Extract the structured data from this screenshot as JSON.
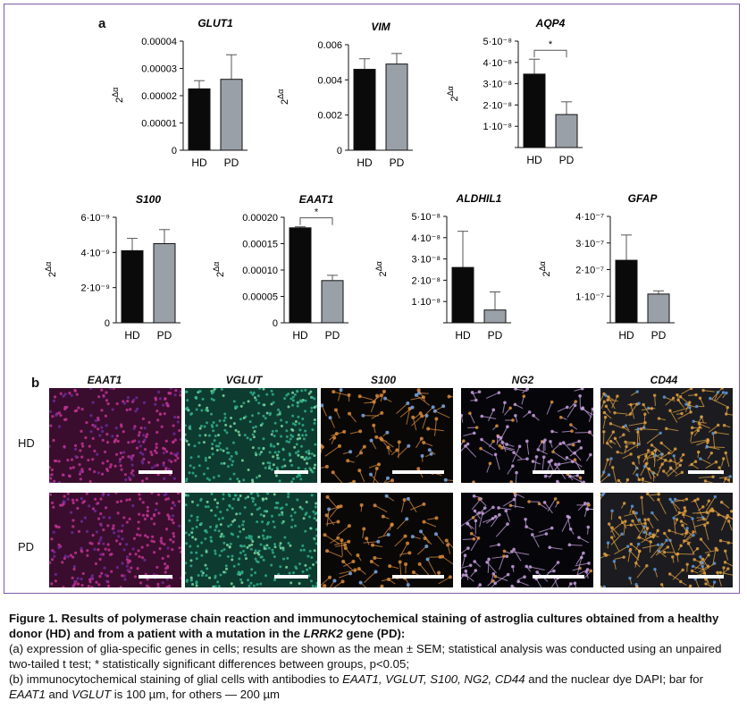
{
  "panel_a_label": "a",
  "panel_b_label": "b",
  "chart_data": [
    {
      "type": "bar",
      "title": "GLUT1",
      "ylabel": "2^Δα",
      "categories": [
        "HD",
        "PD"
      ],
      "values": [
        2.25e-05,
        2.6e-05
      ],
      "errors": [
        3e-06,
        9e-06
      ],
      "ylim": [
        0,
        4e-05
      ],
      "yticks": [
        "0",
        "0.00001",
        "0.00002",
        "0.00003",
        "0.00004"
      ],
      "significance": ""
    },
    {
      "type": "bar",
      "title": "VIM",
      "ylabel": "2^Δα",
      "categories": [
        "HD",
        "PD"
      ],
      "values": [
        0.0046,
        0.0049
      ],
      "errors": [
        0.0006,
        0.0006
      ],
      "ylim": [
        0,
        0.006
      ],
      "yticks": [
        "0",
        "0.002",
        "0.004",
        "0.006"
      ],
      "significance": ""
    },
    {
      "type": "bar",
      "title": "AQP4",
      "ylabel": "2^Δα",
      "categories": [
        "HD",
        "PD"
      ],
      "values": [
        3.45e-08,
        1.55e-08
      ],
      "errors": [
        7e-09,
        6e-09
      ],
      "ylim": [
        0,
        5e-08
      ],
      "yticks": [
        "",
        "1·10⁻⁸",
        "2·10⁻⁸",
        "3·10⁻⁸",
        "4·10⁻⁸",
        "5·10⁻⁸"
      ],
      "significance": "*"
    },
    {
      "type": "bar",
      "title": "S100",
      "ylabel": "2^Δα",
      "categories": [
        "HD",
        "PD"
      ],
      "values": [
        4.1e-09,
        4.5e-09
      ],
      "errors": [
        7e-10,
        8e-10
      ],
      "ylim": [
        0,
        6e-09
      ],
      "yticks": [
        "0",
        "2·10⁻⁹",
        "4·10⁻⁹",
        "6·10⁻⁹"
      ],
      "significance": ""
    },
    {
      "type": "bar",
      "title": "EAAT1",
      "ylabel": "2^Δα",
      "categories": [
        "HD",
        "PD"
      ],
      "values": [
        0.00018,
        8e-05
      ],
      "errors": [
        2e-06,
        1e-05
      ],
      "ylim": [
        0,
        0.0002
      ],
      "yticks": [
        "0",
        "0.00005",
        "0.00010",
        "0.00015",
        "0.00020"
      ],
      "significance": "*"
    },
    {
      "type": "bar",
      "title": "ALDHIL1",
      "ylabel": "2^Δα",
      "categories": [
        "HD",
        "PD"
      ],
      "values": [
        2.6e-08,
        6e-09
      ],
      "errors": [
        1.7e-08,
        8.5e-09
      ],
      "ylim": [
        0,
        5e-08
      ],
      "yticks": [
        "",
        "1·10⁻⁸",
        "2·10⁻⁸",
        "3·10⁻⁸",
        "4·10⁻⁸",
        "5·10⁻⁸"
      ],
      "significance": ""
    },
    {
      "type": "bar",
      "title": "GFAP",
      "ylabel": "2^Δα",
      "categories": [
        "HD",
        "PD"
      ],
      "values": [
        2.35e-07,
        1.08e-07
      ],
      "errors": [
        9.5e-08,
        1.2e-08
      ],
      "ylim": [
        0,
        4e-07
      ],
      "yticks": [
        "",
        "1·10⁻⁷",
        "2·10⁻⁷",
        "3·10⁻⁷",
        "4·10⁻⁷"
      ],
      "significance": ""
    }
  ],
  "microscopy": {
    "columns": [
      "EAAT1",
      "VGLUT",
      "S100",
      "NG2",
      "CD44"
    ],
    "rows": [
      "HD",
      "PD"
    ]
  },
  "colors": {
    "frame": "#7b5aa6",
    "hd_bar": "#0a0a0a",
    "pd_bar": "#9aa0a8",
    "eaat1": "#c0338f",
    "vglut": "#2fae8a",
    "s100": "#d98a3a",
    "ng2": "#c8a0e0",
    "cd44": "#e0a040"
  },
  "caption": {
    "title_part1": "Figure 1. Results of polymerase chain reaction and immunocytochemical staining of astroglia cultures obtained from a healthy donor (HD) and from a patient with a mutation in the ",
    "title_gene": "LRRK2",
    "title_part2": " gene (PD):",
    "line_a": "(a) expression of glia-specific genes in cells; results are shown as the mean ± SEM; statistical analysis was conducted using an unpaired two-tailed t test; * statistically significant differences between groups, p<0.05;",
    "line_b_part1": "(b) immunocytochemical staining of glial cells with antibodies to ",
    "line_b_genes": "EAAT1, VGLUT, S100, NG2, CD44",
    "line_b_part2": " and the nuclear dye DAPI; bar for ",
    "line_b_gene1": "EAAT1",
    "line_b_and": " and ",
    "line_b_gene2": "VGLUT",
    "line_b_part3": " is 100 µm, for others — 200 µm"
  }
}
